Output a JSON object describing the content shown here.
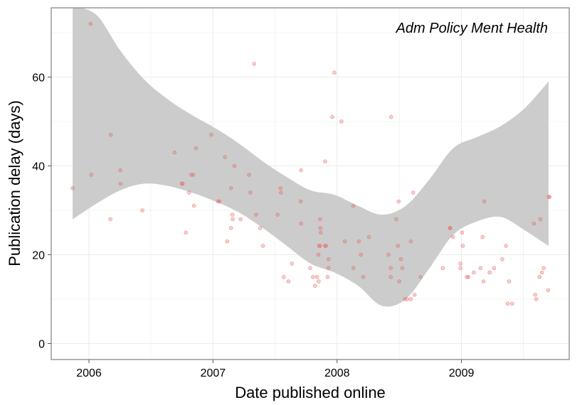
{
  "chart_data": {
    "type": "scatter",
    "title": "Adm Policy Ment Health",
    "xlabel": "Date published online",
    "ylabel": "Publication delay (days)",
    "xlim": [
      "2005-09-12",
      "2009-11-14"
    ],
    "ylim": [
      -3.6,
      75.6
    ],
    "x_ticks": [
      "2006",
      "2007",
      "2008",
      "2009"
    ],
    "y_ticks": [
      "0",
      "20",
      "40",
      "60"
    ],
    "grid": true,
    "colors": {
      "points": "#e8605b",
      "ribbon": "#cccccc",
      "panel_border": "#7f7f7f",
      "grid": "#ebebeb"
    },
    "series": [
      {
        "values": [
          [
            "2005-11-14",
            35
          ],
          [
            "2006-01-06",
            72
          ],
          [
            "2006-01-08",
            38
          ],
          [
            "2006-03-05",
            28
          ],
          [
            "2006-03-06",
            47
          ],
          [
            "2006-04-03",
            39
          ],
          [
            "2006-04-04",
            36
          ],
          [
            "2006-06-07",
            30
          ],
          [
            "2006-09-10",
            43
          ],
          [
            "2006-10-01",
            36
          ],
          [
            "2006-10-04",
            36
          ],
          [
            "2006-10-13",
            25
          ],
          [
            "2006-10-22",
            34
          ],
          [
            "2006-10-29",
            38
          ],
          [
            "2006-11-04",
            38
          ],
          [
            "2006-11-06",
            31
          ],
          [
            "2006-11-12",
            44
          ],
          [
            "2006-12-27",
            47
          ],
          [
            "2007-01-16",
            32
          ],
          [
            "2007-01-20",
            32
          ],
          [
            "2007-02-05",
            42
          ],
          [
            "2007-02-12",
            23
          ],
          [
            "2007-02-23",
            35
          ],
          [
            "2007-02-23",
            26
          ],
          [
            "2007-02-27",
            29
          ],
          [
            "2007-02-28",
            28
          ],
          [
            "2007-03-05",
            40
          ],
          [
            "2007-03-23",
            28
          ],
          [
            "2007-04-17",
            38
          ],
          [
            "2007-04-21",
            34
          ],
          [
            "2007-05-02",
            63
          ],
          [
            "2007-05-08",
            29
          ],
          [
            "2007-05-20",
            26
          ],
          [
            "2007-05-28",
            22
          ],
          [
            "2007-07-10",
            29
          ],
          [
            "2007-07-19",
            35
          ],
          [
            "2007-07-20",
            34
          ],
          [
            "2007-07-28",
            15
          ],
          [
            "2007-08-11",
            14
          ],
          [
            "2007-08-21",
            18
          ],
          [
            "2007-09-17",
            39
          ],
          [
            "2007-09-16",
            32
          ],
          [
            "2007-09-17",
            27
          ],
          [
            "2007-10-14",
            17
          ],
          [
            "2007-10-22",
            15
          ],
          [
            "2007-10-28",
            13
          ],
          [
            "2007-11-03",
            15
          ],
          [
            "2007-11-08",
            14
          ],
          [
            "2007-11-07",
            20
          ],
          [
            "2007-11-09",
            22
          ],
          [
            "2007-11-12",
            28
          ],
          [
            "2007-11-12",
            22
          ],
          [
            "2007-11-13",
            26
          ],
          [
            "2007-11-14",
            25
          ],
          [
            "2007-11-27",
            22
          ],
          [
            "2007-11-27",
            41
          ],
          [
            "2007-11-29",
            22
          ],
          [
            "2007-12-07",
            17
          ],
          [
            "2007-12-07",
            19
          ],
          [
            "2007-12-04",
            15
          ],
          [
            "2007-12-18",
            51
          ],
          [
            "2007-12-24",
            61
          ],
          [
            "2008-01-14",
            50
          ],
          [
            "2008-01-24",
            23
          ],
          [
            "2008-02-18",
            31
          ],
          [
            "2008-02-18",
            17
          ],
          [
            "2008-03-05",
            23
          ],
          [
            "2008-03-11",
            20
          ],
          [
            "2008-03-18",
            15
          ],
          [
            "2008-04-04",
            24
          ],
          [
            "2008-05-31",
            20
          ],
          [
            "2008-06-08",
            51
          ],
          [
            "2008-06-07",
            17
          ],
          [
            "2008-06-07",
            15
          ],
          [
            "2008-06-23",
            28
          ],
          [
            "2008-06-30",
            32
          ],
          [
            "2008-06-28",
            22
          ],
          [
            "2008-07-02",
            14
          ],
          [
            "2008-07-07",
            19
          ],
          [
            "2008-07-11",
            17
          ],
          [
            "2008-07-18",
            10
          ],
          [
            "2008-07-25",
            10
          ],
          [
            "2008-08-05",
            23
          ],
          [
            "2008-08-05",
            10
          ],
          [
            "2008-08-12",
            34
          ],
          [
            "2008-08-16",
            11
          ],
          [
            "2008-09-03",
            15
          ],
          [
            "2008-11-07",
            17
          ],
          [
            "2008-11-28",
            26
          ],
          [
            "2008-11-29",
            26
          ],
          [
            "2008-12-07",
            24
          ],
          [
            "2008-12-29",
            18
          ],
          [
            "2008-12-29",
            17
          ],
          [
            "2009-01-03",
            25
          ],
          [
            "2009-01-05",
            22
          ],
          [
            "2009-01-17",
            15
          ],
          [
            "2009-01-21",
            15
          ],
          [
            "2009-02-06",
            16
          ],
          [
            "2009-02-26",
            17
          ],
          [
            "2009-03-04",
            24
          ],
          [
            "2009-03-07",
            14
          ],
          [
            "2009-03-09",
            32
          ],
          [
            "2009-03-25",
            16
          ],
          [
            "2009-04-07",
            17
          ],
          [
            "2009-05-01",
            19
          ],
          [
            "2009-05-12",
            22
          ],
          [
            "2009-05-17",
            9
          ],
          [
            "2009-05-21",
            14
          ],
          [
            "2009-05-30",
            9
          ],
          [
            "2009-08-02",
            27
          ],
          [
            "2009-08-06",
            11
          ],
          [
            "2009-08-09",
            10
          ],
          [
            "2009-08-19",
            15
          ],
          [
            "2009-08-21",
            28
          ],
          [
            "2009-08-26",
            16
          ],
          [
            "2009-08-31",
            17
          ],
          [
            "2009-09-13",
            12
          ],
          [
            "2009-09-15",
            33
          ],
          [
            "2009-09-17",
            33
          ]
        ]
      }
    ],
    "smooth_band": {
      "x": [
        "2005-11-14",
        "2006-01-23",
        "2006-04-03",
        "2006-06-12",
        "2006-08-21",
        "2006-10-30",
        "2007-01-08",
        "2007-03-19",
        "2007-05-28",
        "2007-08-06",
        "2007-10-15",
        "2007-12-24",
        "2008-03-03",
        "2008-05-12",
        "2008-07-21",
        "2008-09-29",
        "2008-12-08",
        "2009-02-16",
        "2009-04-27",
        "2009-07-06",
        "2009-09-14"
      ],
      "lower": [
        28,
        31.5,
        34.5,
        36,
        35.5,
        34,
        32,
        29.5,
        26,
        22,
        18,
        16,
        13,
        8.5,
        10,
        17,
        24.5,
        27.5,
        28.5,
        25.5,
        22
      ],
      "upper": [
        76,
        74,
        66,
        59.5,
        55,
        51.5,
        48.5,
        45,
        41,
        37.5,
        34.5,
        33.5,
        31,
        29,
        31,
        37,
        44,
        46.5,
        49,
        53,
        59
      ]
    }
  }
}
